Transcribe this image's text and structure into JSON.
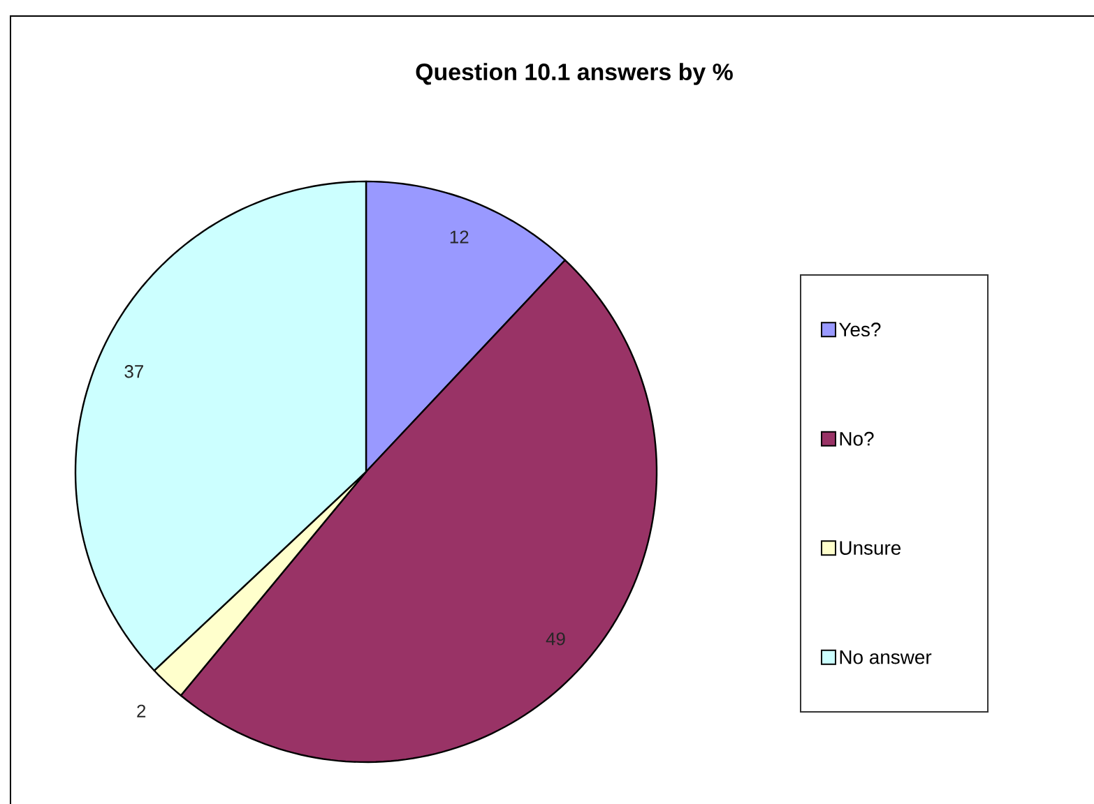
{
  "chart_data": {
    "type": "pie",
    "title": "Question 10.1 answers by %",
    "categories": [
      "Yes?",
      "No?",
      "Unsure",
      "No answer"
    ],
    "values": [
      12,
      49,
      2,
      37
    ],
    "colors": [
      "#9999ff",
      "#993366",
      "#ffffcc",
      "#ccffff"
    ],
    "data_labels": true,
    "legend": "right"
  }
}
